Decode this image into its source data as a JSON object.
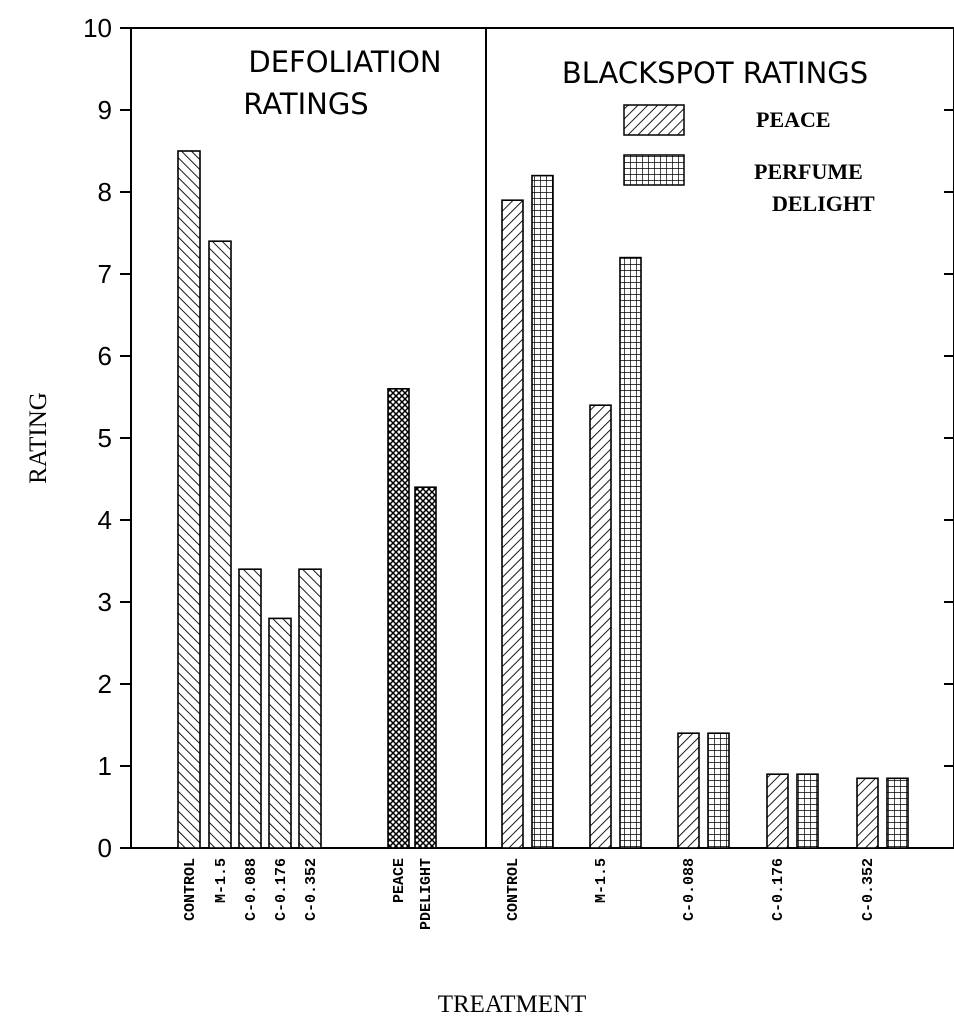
{
  "chart_data": {
    "type": "bar",
    "ylabel": "RATING",
    "xlabel": "TREATMENT",
    "ylim": [
      0,
      10
    ],
    "yticks": [
      "0",
      "1",
      "2",
      "3",
      "4",
      "5",
      "6",
      "7",
      "8",
      "9",
      "10"
    ],
    "grid": false,
    "legend": {
      "placement": "top-right",
      "entries": [
        {
          "label": "PEACE",
          "pattern": "diagonal-hatch"
        },
        {
          "label_lines": [
            "PERFUME",
            "DELIGHT"
          ],
          "pattern": "grid-hatch"
        }
      ]
    },
    "panels": [
      {
        "title_lines": [
          "DEFOLIATION",
          "RATINGS"
        ],
        "groups": [
          {
            "bars": [
              {
                "category": "CONTROL",
                "value": 8.5,
                "pattern": "diagonal-hatch-right"
              },
              {
                "category": "M-1.5",
                "value": 7.4,
                "pattern": "diagonal-hatch-right"
              },
              {
                "category": "C-0.088",
                "value": 3.4,
                "pattern": "diagonal-hatch-right"
              },
              {
                "category": "C-0.176",
                "value": 2.8,
                "pattern": "diagonal-hatch-right"
              },
              {
                "category": "C-0.352",
                "value": 3.4,
                "pattern": "diagonal-hatch-right"
              }
            ]
          },
          {
            "bars": [
              {
                "category": "PEACE",
                "value": 5.6,
                "pattern": "crosshatch"
              },
              {
                "category": "PDELIGHT",
                "value": 4.4,
                "pattern": "crosshatch"
              }
            ]
          }
        ]
      },
      {
        "title_lines": [
          "BLACKSPOT RATINGS"
        ],
        "series": [
          "PEACE",
          "PERFUME DELIGHT"
        ],
        "categories": [
          "CONTROL",
          "M-1.5",
          "C-0.088",
          "C-0.176",
          "C-0.352"
        ],
        "groups": [
          {
            "category": "CONTROL",
            "values": [
              7.9,
              8.2
            ]
          },
          {
            "category": "M-1.5",
            "values": [
              5.4,
              7.2
            ]
          },
          {
            "category": "C-0.088",
            "values": [
              1.4,
              1.4
            ]
          },
          {
            "category": "C-0.176",
            "values": [
              0.9,
              0.9
            ]
          },
          {
            "category": "C-0.352",
            "values": [
              0.85,
              0.85
            ]
          }
        ]
      }
    ]
  }
}
